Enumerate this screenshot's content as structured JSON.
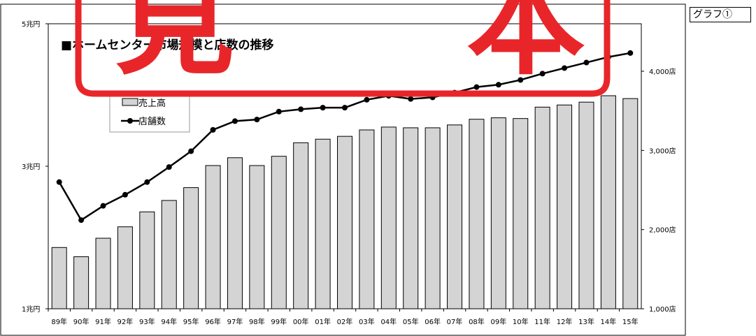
{
  "graph_label": "グラフ①",
  "stamp_text": "見本",
  "colors": {
    "bar_fill": "#d4d4d4",
    "bar_stroke": "#000000",
    "line": "#000000",
    "stamp": "#e8262a"
  },
  "chart_data": {
    "type": "bar+line",
    "title": "■ホームセンター市場規模と店数の推移",
    "categories": [
      "89年",
      "90年",
      "91年",
      "92年",
      "93年",
      "94年",
      "95年",
      "96年",
      "97年",
      "98年",
      "99年",
      "00年",
      "01年",
      "02年",
      "03年",
      "04年",
      "05年",
      "06年",
      "07年",
      "08年",
      "09年",
      "10年",
      "11年",
      "12年",
      "13年",
      "14年",
      "15年"
    ],
    "series": [
      {
        "name": "売上高",
        "kind": "bar",
        "axis": "left",
        "values": [
          1.86,
          1.73,
          1.99,
          2.15,
          2.36,
          2.52,
          2.7,
          3.01,
          3.12,
          3.01,
          3.14,
          3.33,
          3.38,
          3.42,
          3.51,
          3.55,
          3.54,
          3.54,
          3.58,
          3.66,
          3.68,
          3.67,
          3.83,
          3.86,
          3.9,
          3.99,
          3.95
        ]
      },
      {
        "name": "店舗数",
        "kind": "line",
        "axis": "right",
        "values": [
          2600,
          2120,
          2300,
          2440,
          2600,
          2790,
          2990,
          3260,
          3370,
          3390,
          3490,
          3520,
          3540,
          3540,
          3640,
          3690,
          3650,
          3670,
          3730,
          3800,
          3830,
          3890,
          3970,
          4040,
          4110,
          4180,
          4230
        ]
      }
    ],
    "y_left": {
      "ylim": [
        1,
        5
      ],
      "ticks": [
        "1兆円",
        "3兆円",
        "5兆円"
      ],
      "tick_values": [
        1,
        3,
        5
      ]
    },
    "y_right": {
      "ylim": [
        1000,
        4600
      ],
      "ticks": [
        "1,000店",
        "2,000店",
        "3,000店",
        "4,000店"
      ],
      "tick_values": [
        1000,
        2000,
        3000,
        4000
      ]
    },
    "legend": {
      "placement": "top-left"
    },
    "grid": false
  }
}
